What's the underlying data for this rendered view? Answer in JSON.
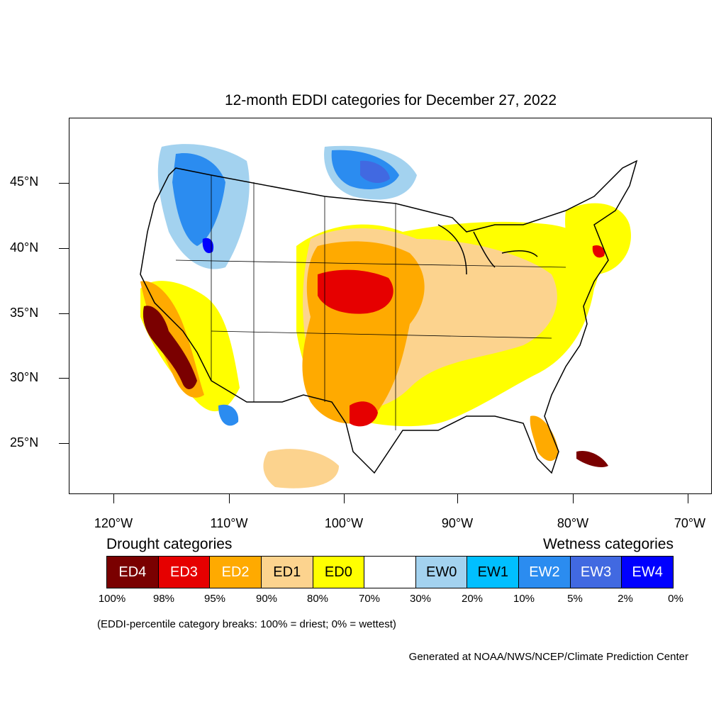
{
  "title": "12-month EDDI categories for December 27, 2022",
  "map": {
    "region": "Contiguous United States",
    "lat_axis": [
      "45°N",
      "40°N",
      "35°N",
      "30°N",
      "25°N"
    ],
    "lon_axis": [
      "120°W",
      "110°W",
      "100°W",
      "90°W",
      "80°W",
      "70°W"
    ]
  },
  "legend": {
    "drought_heading": "Drought categories",
    "wetness_heading": "Wetness categories",
    "categories": [
      {
        "label": "ED4",
        "color": "#7a0000",
        "text_color": "#ffffff"
      },
      {
        "label": "ED3",
        "color": "#e60000",
        "text_color": "#ffffff"
      },
      {
        "label": "ED2",
        "color": "#ffaa00",
        "text_color": "#ffffff"
      },
      {
        "label": "ED1",
        "color": "#fcd38e",
        "text_color": "#000000"
      },
      {
        "label": "ED0",
        "color": "#ffff00",
        "text_color": "#000000"
      },
      {
        "label": "",
        "color": "#ffffff",
        "text_color": "#000000"
      },
      {
        "label": "EW0",
        "color": "#a3d2ef",
        "text_color": "#000000"
      },
      {
        "label": "EW1",
        "color": "#00bfff",
        "text_color": "#000000"
      },
      {
        "label": "EW2",
        "color": "#2b8cf0",
        "text_color": "#ffffff"
      },
      {
        "label": "EW3",
        "color": "#4169e1",
        "text_color": "#ffffff"
      },
      {
        "label": "EW4",
        "color": "#0000ff",
        "text_color": "#ffffff"
      }
    ],
    "breaks": [
      "100%",
      "98%",
      "95%",
      "90%",
      "80%",
      "70%",
      "30%",
      "20%",
      "10%",
      "5%",
      "2%",
      "0%"
    ]
  },
  "note": "(EDDI-percentile category breaks: 100% = driest; 0% = wettest)",
  "credit": "Generated at NOAA/NWS/NCEP/Climate Prediction Center"
}
